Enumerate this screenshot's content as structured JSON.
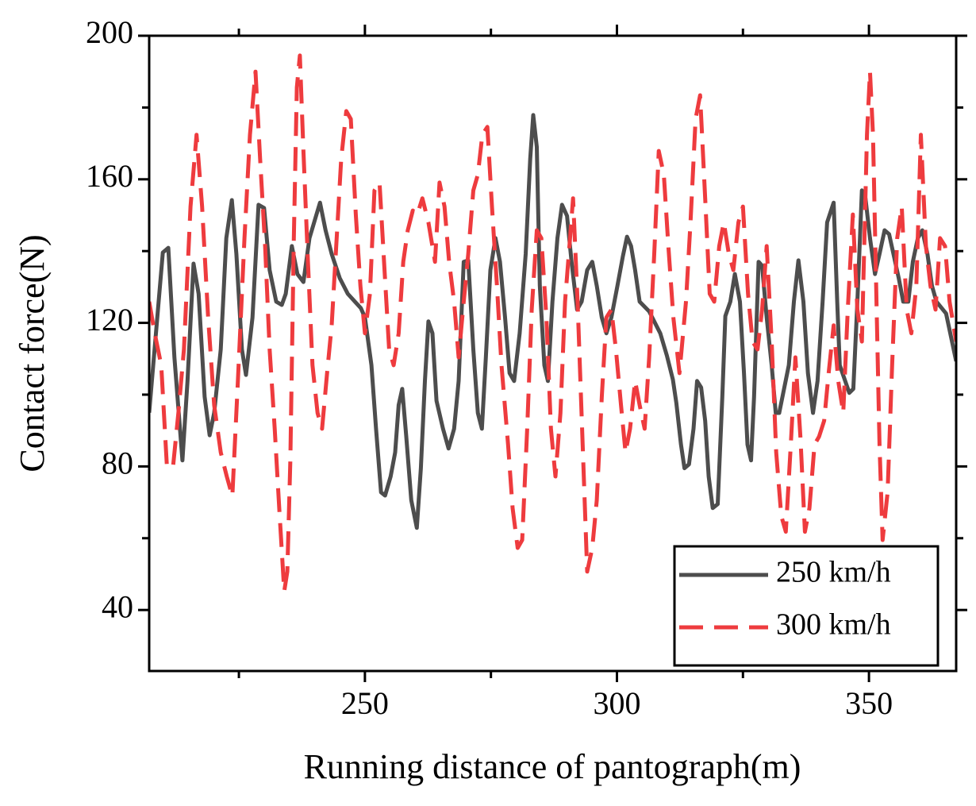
{
  "chart_data": {
    "type": "line",
    "xlabel": "Running distance of pantograph(m)",
    "ylabel": "Contact force(N)",
    "xlim": [
      207.2,
      367.3
    ],
    "ylim": [
      23,
      200
    ],
    "xticks": [
      250,
      300,
      350
    ],
    "xminorticks": [
      225,
      275,
      325
    ],
    "yticks": [
      40,
      80,
      120,
      160,
      200
    ],
    "yminorticks": [
      60,
      100,
      140,
      180
    ],
    "legend": "lower right",
    "series": [
      {
        "name": "250 km/h",
        "color": "#4d4d4d",
        "dash": false,
        "x": [
          207.2,
          209.9,
          211,
          212.2,
          213.8,
          214.8,
          216,
          217,
          218.2,
          219.2,
          220.1,
          221.4,
          222.5,
          223.6,
          224.5,
          225.6,
          226.4,
          227.7,
          228.9,
          230,
          231.1,
          232.4,
          233.5,
          234.3,
          235.5,
          236.6,
          237.8,
          239,
          240.3,
          241.1,
          242.2,
          243.4,
          245,
          246.6,
          249.2,
          250,
          251.3,
          252.2,
          253.2,
          254,
          255.1,
          256,
          256.7,
          257.4,
          258.2,
          259.2,
          260.3,
          261.1,
          261.9,
          262.6,
          263.4,
          264.2,
          265.5,
          266.6,
          267.7,
          268.6,
          269.6,
          270.5,
          271.5,
          272.4,
          273.2,
          274,
          274.9,
          275.9,
          276.8,
          277.8,
          278.7,
          279.6,
          280.7,
          281.9,
          282.8,
          283.4,
          284.1,
          284.7,
          285.6,
          286.3,
          287.2,
          288.2,
          289.1,
          290.1,
          291,
          292.1,
          293,
          294.1,
          295.1,
          296,
          297,
          297.9,
          298.9,
          300.1,
          301.2,
          302,
          302.8,
          303.6,
          304.5,
          306.4,
          308.6,
          309.9,
          311.1,
          311.8,
          312.7,
          313.4,
          314.3,
          315.2,
          315.9,
          316.7,
          317.5,
          318.2,
          319,
          320,
          320.9,
          321.5,
          322.5,
          323.4,
          324.4,
          325.2,
          325.9,
          326.6,
          327.2,
          328.1,
          328.8,
          329.7,
          330.7,
          331.5,
          332.2,
          334.1,
          335.1,
          336,
          337,
          337.9,
          338.9,
          339.8,
          340.8,
          341.7,
          343,
          343.7,
          344.2,
          346.1,
          346.9,
          347.7,
          348.6,
          349.3,
          350.2,
          351.2,
          352.1,
          353.1,
          354,
          355.9,
          356.8,
          357.8,
          358.7,
          359.7,
          360.6,
          361.6,
          362.5,
          363.4,
          365.3,
          367.3
        ],
        "values": [
          95,
          139.6,
          140.9,
          110.4,
          81.7,
          103.8,
          136.5,
          128.1,
          99.4,
          88.7,
          94.9,
          112.6,
          143.6,
          154.2,
          139.2,
          112.6,
          105.5,
          121.5,
          152.9,
          152,
          134.7,
          125.9,
          125,
          128.1,
          141.4,
          133.6,
          131.4,
          143.6,
          149.8,
          153.5,
          145.8,
          139.2,
          132.5,
          128.1,
          124.1,
          121.5,
          108.2,
          90.5,
          72.8,
          71.9,
          77.2,
          83.9,
          97.1,
          101.6,
          88.3,
          70.6,
          62.9,
          79.5,
          103.8,
          120.4,
          117.1,
          98.3,
          90.5,
          85,
          90.5,
          103.8,
          137,
          137.4,
          112.6,
          94.9,
          90.5,
          110.4,
          134.7,
          143.6,
          137,
          121.5,
          106,
          103.8,
          117.1,
          139.2,
          165.7,
          177.9,
          169,
          130.3,
          108.2,
          103.8,
          125.9,
          143.6,
          152.9,
          149.8,
          137,
          123.7,
          125.9,
          134.7,
          137,
          130.3,
          121.5,
          117.1,
          121.5,
          130.3,
          138.7,
          144,
          141.4,
          134.7,
          125.9,
          123.2,
          117.1,
          110.9,
          104.2,
          97.6,
          86.1,
          79.5,
          80.6,
          90.5,
          103.8,
          102,
          92.7,
          77.2,
          68.4,
          69.5,
          99.4,
          121.9,
          125.9,
          133.6,
          125.9,
          106,
          86.1,
          81.7,
          99.4,
          137,
          135.9,
          121.5,
          108.2,
          94.9,
          94.9,
          108.2,
          125.9,
          137.4,
          125.9,
          106,
          94.9,
          103.8,
          125.9,
          148,
          153.5,
          125.9,
          108.2,
          100.5,
          101.6,
          125.9,
          156.9,
          154.7,
          143.6,
          133.6,
          139.2,
          145.8,
          144.7,
          132.5,
          125.9,
          125.9,
          137,
          143.6,
          145.8,
          139.2,
          130.3,
          125.9,
          122.6,
          109.3
        ]
      },
      {
        "name": "300 km/h",
        "color": "#ee3b3e",
        "dash": true,
        "x": [
          207.2,
          208.3,
          209.6,
          210.7,
          211.9,
          213,
          214.1,
          215.4,
          216.6,
          217.7,
          218.9,
          220.1,
          221.4,
          222.6,
          223.7,
          224.8,
          226.1,
          227.2,
          228.3,
          229.2,
          230.2,
          231.1,
          232.1,
          233,
          234,
          234.6,
          235.2,
          235.9,
          236.5,
          237.1,
          237.8,
          238.7,
          239.6,
          240.6,
          241.5,
          242.5,
          243.4,
          244.4,
          245.3,
          246.3,
          247.2,
          248.2,
          249.1,
          250,
          251,
          251.9,
          252.9,
          253.8,
          254.8,
          255.7,
          256.7,
          257.6,
          258.5,
          259.5,
          260.4,
          261.4,
          262.6,
          263.9,
          264.8,
          265.8,
          266.7,
          267.7,
          268.6,
          269.6,
          270.5,
          271.5,
          272.4,
          273.3,
          274.3,
          275.2,
          276.2,
          277.1,
          278.4,
          279.3,
          280.3,
          281.2,
          282.2,
          283.1,
          284.1,
          285,
          286,
          286.9,
          287.8,
          288.8,
          289.7,
          290.7,
          291.3,
          292.2,
          293.2,
          294.1,
          295.1,
          296,
          297,
          297.9,
          298.9,
          299.8,
          300.8,
          301.7,
          302.6,
          303.6,
          304.5,
          305.5,
          306.4,
          307.4,
          308.3,
          309.3,
          310.2,
          311.2,
          312.4,
          313.7,
          314.6,
          315.6,
          316.5,
          317.5,
          318.4,
          319.3,
          320.3,
          321.2,
          322.2,
          323.1,
          324.1,
          325,
          326,
          326.9,
          327.9,
          328.8,
          329.7,
          330.7,
          331.6,
          332.6,
          333.5,
          334.5,
          335.4,
          336.4,
          337.3,
          338.2,
          339.2,
          340.1,
          341.1,
          342,
          343,
          343.9,
          344.9,
          345.8,
          346.8,
          347.7,
          348.6,
          349.6,
          350.2,
          350.8,
          351.5,
          352.1,
          352.7,
          353.7,
          354.6,
          355.6,
          356.5,
          357.5,
          358.4,
          359.4,
          360.3,
          361.3,
          362.2,
          363.2,
          364.1,
          365.1,
          366,
          367.3
        ],
        "values": [
          125.9,
          117.1,
          108.2,
          80.6,
          79.5,
          94.9,
          112.6,
          152.4,
          172.4,
          152.4,
          121.5,
          97.1,
          83.9,
          77.2,
          71.7,
          103.8,
          143.6,
          172.4,
          190,
          165.7,
          141.4,
          112.6,
          90.5,
          68.4,
          45.2,
          50.7,
          81.7,
          143.6,
          185.6,
          194.5,
          167.9,
          137,
          108.2,
          94.9,
          90.5,
          106,
          119.3,
          143.6,
          165.7,
          179,
          176.8,
          150.2,
          130.3,
          117.1,
          128.1,
          156.9,
          159.1,
          137,
          112.6,
          108.2,
          117.1,
          137,
          145.8,
          151.3,
          150.2,
          154.7,
          148,
          137,
          159.1,
          152.4,
          137,
          125.9,
          110.4,
          125.9,
          139.2,
          156.9,
          161.3,
          172.4,
          174.6,
          152.4,
          130.3,
          108.2,
          86.1,
          68.4,
          57.3,
          59.5,
          90.5,
          123.7,
          145.8,
          143.6,
          121.5,
          90.5,
          77.2,
          94.9,
          125.9,
          143.6,
          154.7,
          125.9,
          86.1,
          50.7,
          57.3,
          70.6,
          99.4,
          121.5,
          123.7,
          112.6,
          97.1,
          83.9,
          90.5,
          103.8,
          97.1,
          90.5,
          110.4,
          139.2,
          167.9,
          161.3,
          141.4,
          121.5,
          106,
          125.9,
          148,
          176.8,
          183.4,
          154.7,
          128.1,
          125.9,
          141.4,
          148,
          139.2,
          134.7,
          148,
          152.4,
          128.1,
          114.8,
          112.6,
          123.7,
          141.4,
          114.8,
          83.9,
          66.2,
          61.8,
          86.1,
          110.4,
          88.3,
          61.8,
          68.4,
          86.1,
          88.3,
          92.7,
          106,
          119.3,
          103.8,
          94.9,
          123.7,
          150.2,
          123.7,
          114.8,
          172.4,
          190,
          172.4,
          125.9,
          86.1,
          59.5,
          72.8,
          108.2,
          143.6,
          152.4,
          123.7,
          117.1,
          130.3,
          172.4,
          141.4,
          130.3,
          123.7,
          143.6,
          141.4,
          125.9,
          114.8
        ]
      }
    ]
  }
}
